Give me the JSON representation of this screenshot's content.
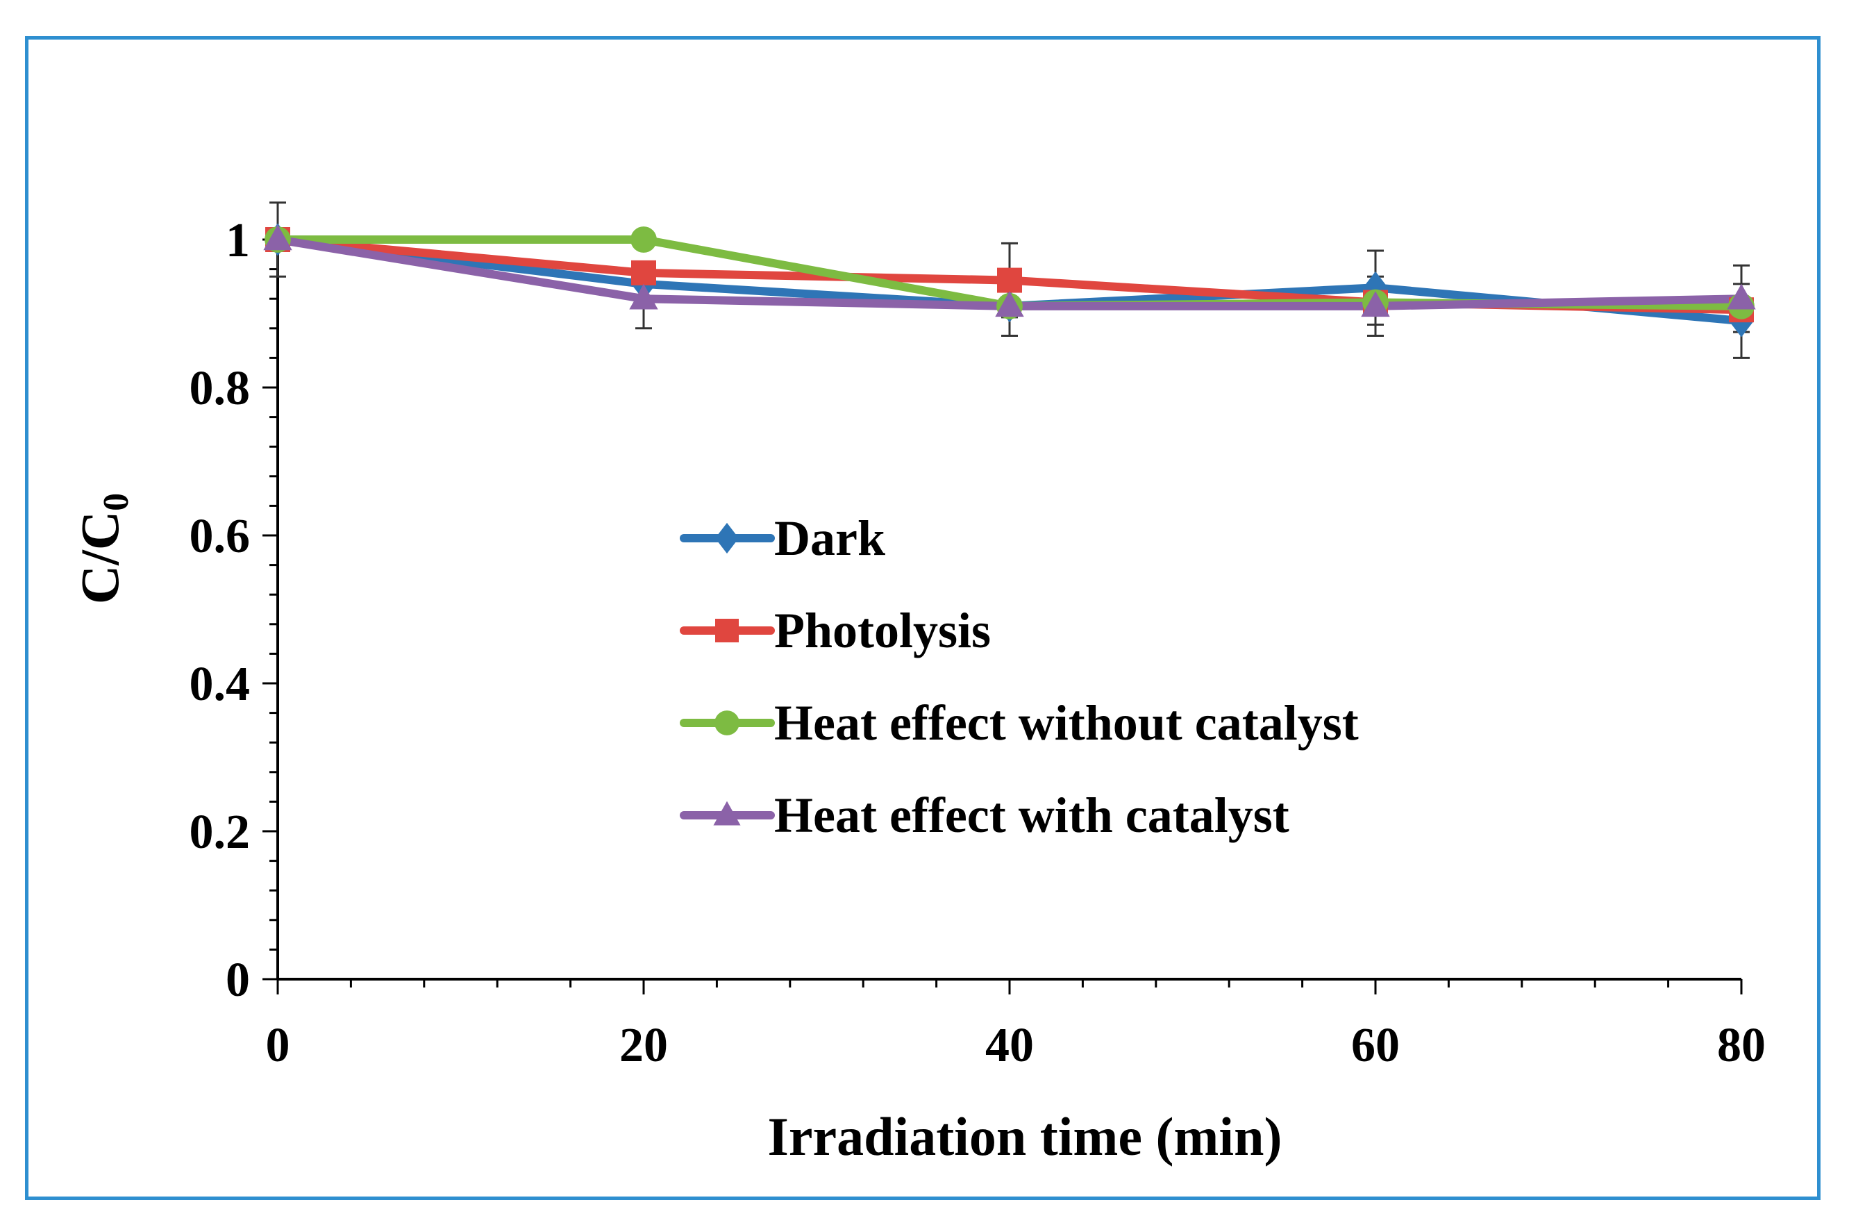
{
  "chart_data": {
    "type": "line",
    "title": "",
    "xlabel": "Irradiation time (min)",
    "ylabel": "C/C0",
    "ylabel_main": "C/C",
    "ylabel_sub": "0",
    "x": [
      0,
      20,
      40,
      60,
      80
    ],
    "xlim": [
      0,
      80
    ],
    "ylim": [
      0,
      1
    ],
    "x_ticks": [
      "0",
      "20",
      "40",
      "60",
      "80"
    ],
    "y_ticks": [
      "0",
      "0.2",
      "0.4",
      "0.6",
      "0.8",
      "1"
    ],
    "legend_position": "center-right",
    "series": [
      {
        "name": "Dark",
        "marker": "diamond",
        "color": "#2e75b6",
        "values": [
          1.0,
          0.94,
          0.91,
          0.935,
          0.89
        ],
        "errors": [
          0.05,
          0.0,
          0.0,
          0.05,
          0.05
        ]
      },
      {
        "name": "Photolysis",
        "marker": "square",
        "color": "#e0463f",
        "values": [
          1.0,
          0.955,
          0.945,
          0.915,
          0.905
        ],
        "errors": [
          0.0,
          0.0,
          0.05,
          0.0,
          0.0
        ]
      },
      {
        "name": "Heat effect without catalyst",
        "marker": "circle",
        "color": "#7dbb42",
        "values": [
          1.0,
          1.0,
          0.91,
          0.915,
          0.91
        ],
        "errors": [
          0.0,
          0.0,
          0.0,
          0.0,
          0.0
        ]
      },
      {
        "name": "Heat effect with catalyst",
        "marker": "triangle",
        "color": "#8b62a8",
        "values": [
          1.0,
          0.92,
          0.91,
          0.91,
          0.92
        ],
        "errors": [
          0.0,
          0.04,
          0.04,
          0.04,
          0.045
        ]
      }
    ]
  }
}
